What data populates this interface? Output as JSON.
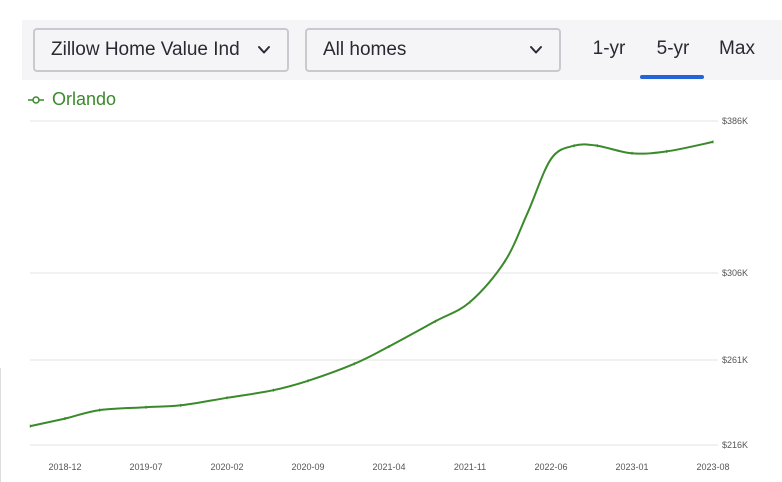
{
  "controls": {
    "metric_select": "Zillow Home Value Ind",
    "homes_select": "All homes",
    "tabs": [
      "1-yr",
      "5-yr",
      "Max"
    ],
    "active_tab": "5-yr"
  },
  "colors": {
    "series": "#3a8a2c",
    "active_tab": "#2563d8",
    "grid": "#e3e3e3"
  },
  "icons": {
    "select_chevron": "chevron-down-icon",
    "legend_marker": "line-marker-icon"
  },
  "chart_data": {
    "type": "line",
    "title": "",
    "xlabel": "",
    "ylabel": "",
    "x_ticks": [
      "2018-12",
      "2019-07",
      "2020-02",
      "2020-09",
      "2021-04",
      "2021-11",
      "2022-06",
      "2023-01",
      "2023-08"
    ],
    "y_ticks": [
      "$216K",
      "$261K",
      "$306K",
      "$386K"
    ],
    "ylim": [
      216,
      386
    ],
    "legend_position": "top-left",
    "grid": true,
    "series": [
      {
        "name": "Orlando",
        "x": [
          "2018-09",
          "2018-12",
          "2019-03",
          "2019-07",
          "2019-10",
          "2020-02",
          "2020-06",
          "2020-09",
          "2021-01",
          "2021-04",
          "2021-08",
          "2021-11",
          "2022-02",
          "2022-04",
          "2022-06",
          "2022-08",
          "2022-10",
          "2023-01",
          "2023-04",
          "2023-08"
        ],
        "values": [
          226,
          230,
          234.5,
          236,
          237,
          241,
          245,
          250,
          259,
          268,
          281,
          291,
          312,
          338,
          366,
          373,
          373,
          369,
          370,
          375
        ]
      }
    ]
  }
}
